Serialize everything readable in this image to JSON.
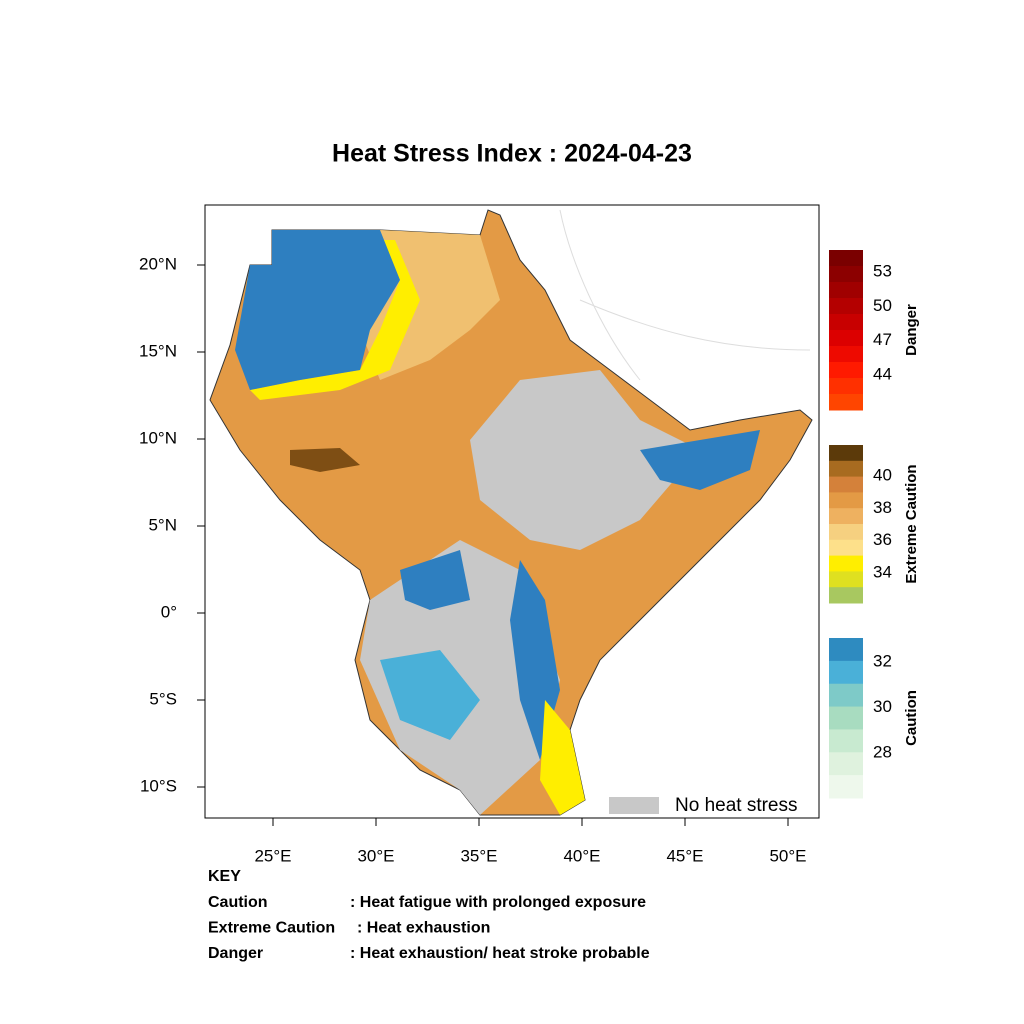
{
  "title": "Heat Stress Index : 2024-04-23",
  "map": {
    "lon_ticks": [
      "25°E",
      "30°E",
      "35°E",
      "40°E",
      "45°E",
      "50°E"
    ],
    "lat_ticks": [
      "20°N",
      "15°N",
      "10°N",
      "5°N",
      "0°",
      "5°S",
      "10°S"
    ],
    "legend": "No heat stress"
  },
  "colorbars": [
    {
      "name": "Danger",
      "labels": [
        "53",
        "50",
        "47",
        "44"
      ],
      "colors": [
        "#7a0000",
        "#8c0000",
        "#a00000",
        "#b40000",
        "#c80000",
        "#dc0000",
        "#ee0a00",
        "#ff1a00",
        "#ff3000",
        "#ff4500"
      ]
    },
    {
      "name": "Extreme Caution",
      "labels": [
        "40",
        "38",
        "36",
        "34"
      ],
      "colors": [
        "#5c3a0a",
        "#a86b20",
        "#d4813a",
        "#e39a45",
        "#eeb160",
        "#f6d080",
        "#fde08a",
        "#ffee00",
        "#dfe020",
        "#a8c860"
      ]
    },
    {
      "name": "Caution",
      "labels": [
        "32",
        "30",
        "28"
      ],
      "colors": [
        "#2e8bc0",
        "#4ab0d8",
        "#7ecac8",
        "#a8dcc0",
        "#c8ead0",
        "#dff2de",
        "#eef8ec"
      ]
    }
  ],
  "key": {
    "title": "KEY",
    "rows": [
      [
        "Caution",
        ": Heat fatigue with prolonged exposure"
      ],
      [
        "Extreme Caution",
        ": Heat exhaustion"
      ],
      [
        "Danger",
        ": Heat exhaustion/ heat stroke probable"
      ]
    ]
  }
}
